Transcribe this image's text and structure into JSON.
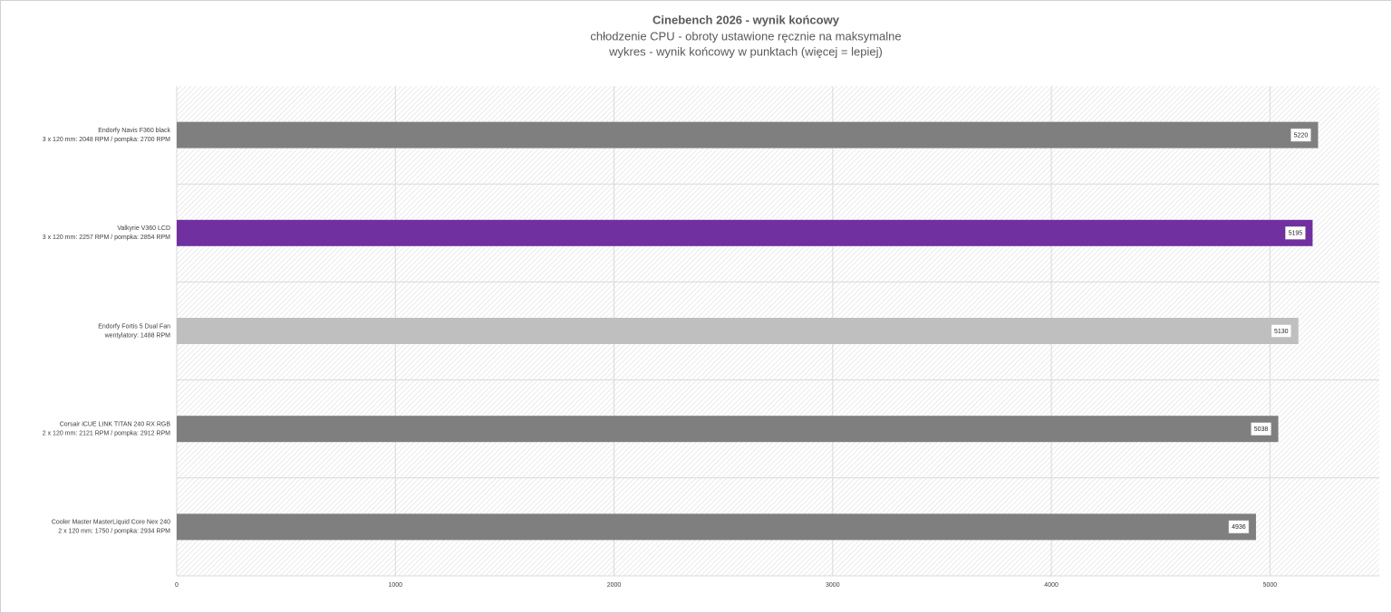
{
  "chart_data": {
    "type": "bar",
    "orientation": "horizontal",
    "title": "Cinebench 2026 - wynik końcowy",
    "subtitle": [
      "chłodzenie CPU - obroty ustawione ręcznie na maksymalne",
      "wykres - wynik końcowy w punktach (więcej = lepiej)"
    ],
    "categories": [
      [
        "Endorfy Navis F360 black",
        "3 x 120 mm: 2048 RPM / pompka: 2700 RPM"
      ],
      [
        "Valkyrie V360 LCD",
        "3 x 120 mm: 2257 RPM / pompka: 2854 RPM"
      ],
      [
        "Endorfy Fortis 5 Dual Fan",
        "wentylatory: 1488 RPM"
      ],
      [
        "Corsair iCUE LINK TITAN 240 RX RGB",
        "2 x 120 mm: 2121 RPM / pompka: 2912 RPM"
      ],
      [
        "Cooler Master MasterLiquid Core Nex 240",
        "2 x 120 mm: 1750 / pompka: 2934 RPM"
      ]
    ],
    "values": [
      5220,
      5195,
      5130,
      5038,
      4936
    ],
    "colors": [
      "#7f7f7f",
      "#7030a0",
      "#bfbfbf",
      "#7f7f7f",
      "#7f7f7f"
    ],
    "xlim": [
      0,
      5500
    ],
    "xticks": [
      0,
      1000,
      2000,
      3000,
      4000,
      5000
    ],
    "grid": true
  }
}
